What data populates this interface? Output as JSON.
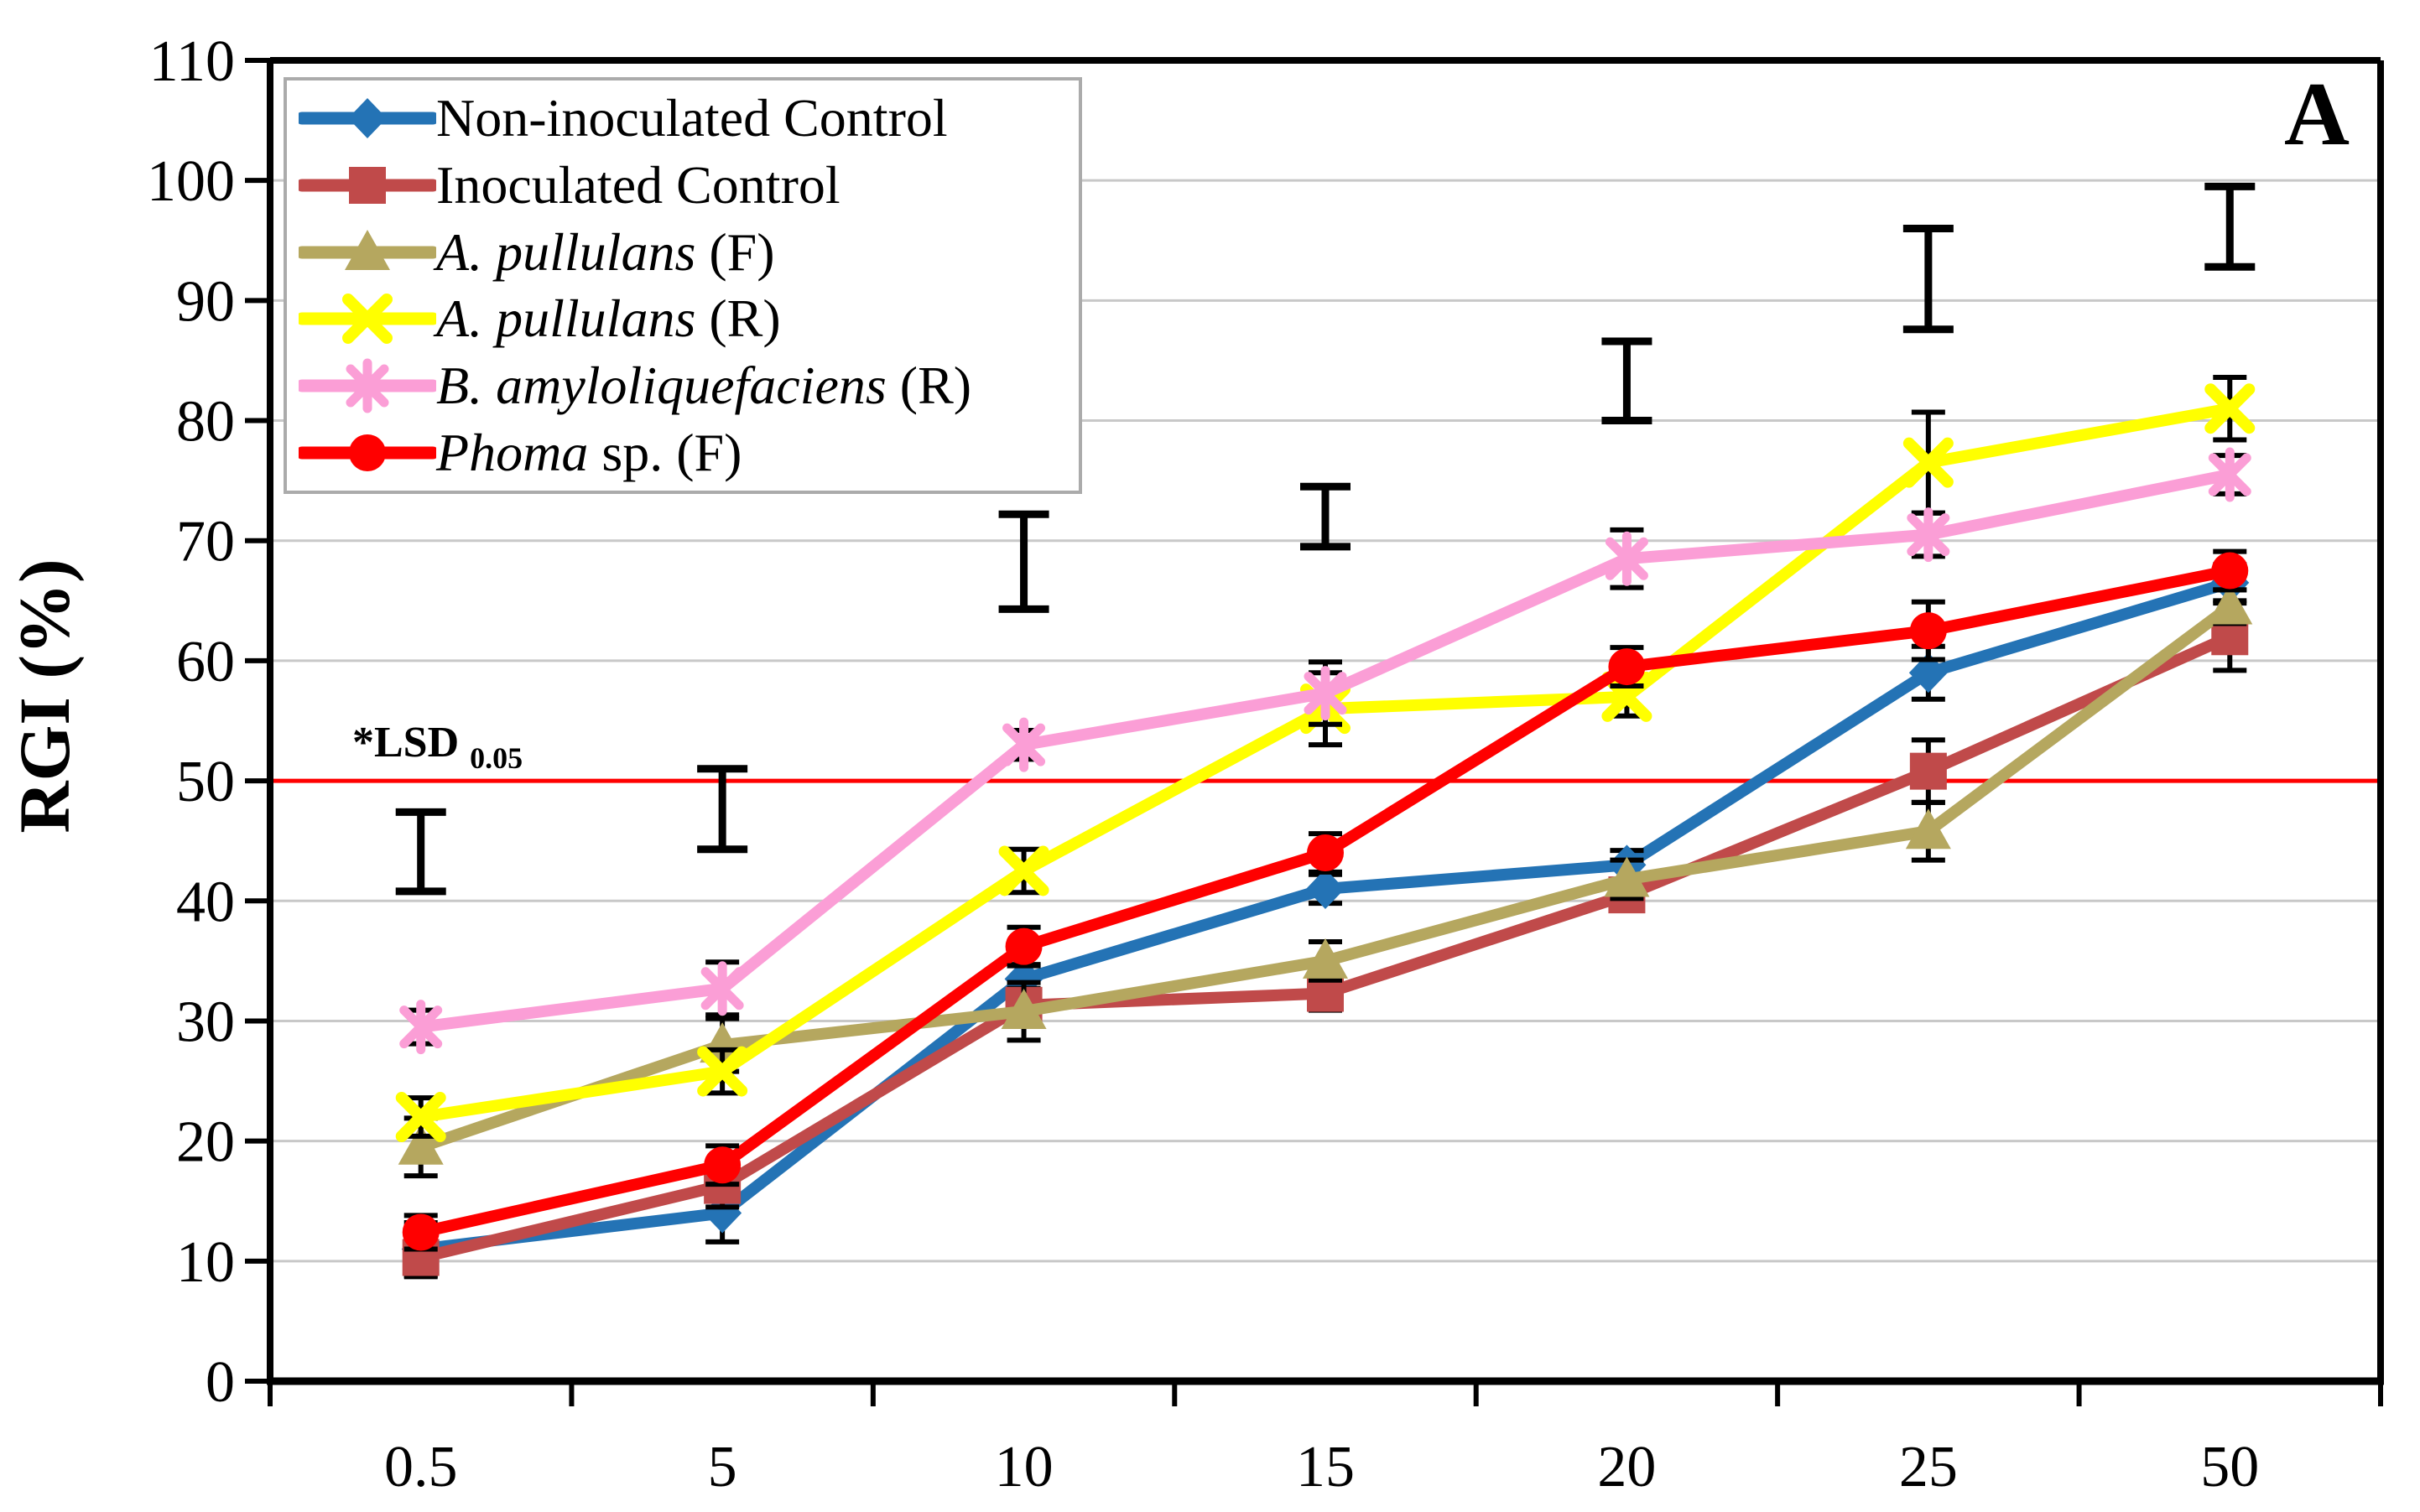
{
  "figure": {
    "panel_label": "A",
    "y_axis": {
      "title": "RGI (%)",
      "tick_labels": [
        "0",
        "10",
        "20",
        "30",
        "40",
        "50",
        "60",
        "70",
        "80",
        "90",
        "100",
        "110"
      ]
    },
    "x_axis": {
      "tick_labels": [
        "0.5",
        "5",
        "10",
        "15",
        "20",
        "25",
        "50"
      ]
    },
    "lsd": {
      "label_prefix": "*LSD",
      "label_sub": "0.05",
      "line_value": 50,
      "line_color": "#FF0000"
    }
  },
  "chart_data": {
    "type": "line",
    "title": "",
    "xlabel": "",
    "ylabel": "RGI (%)",
    "ylim": [
      0,
      110
    ],
    "grid": true,
    "legend_position": "top-left",
    "gridline_color": "#C8C8C8",
    "categories": [
      "0.5",
      "5",
      "10",
      "15",
      "20",
      "25",
      "50"
    ],
    "series": [
      {
        "name": "Non-inoculated Control",
        "legend_parts": [
          {
            "text": "Non-inoculated Control",
            "italic": false
          }
        ],
        "color": "#2473B5",
        "marker": "diamond",
        "values": [
          11,
          14,
          33.5,
          41,
          43,
          59,
          66.5
        ],
        "errors": [
          2.2,
          2.4,
          1.2,
          1.2,
          1.2,
          2.2,
          1.5
        ]
      },
      {
        "name": "Inoculated Control",
        "legend_parts": [
          {
            "text": "Inoculated Control",
            "italic": false
          }
        ],
        "color": "#C04A4A",
        "marker": "square",
        "values": [
          10.3,
          16.3,
          31.3,
          32.3,
          40.5,
          50.8,
          62
        ],
        "errors": [
          1.6,
          1.8,
          1.4,
          1.4,
          1.2,
          2.6,
          2.8
        ]
      },
      {
        "name": "A. pullulans (F)",
        "legend_parts": [
          {
            "text": "A. pullulans",
            "italic": true
          },
          {
            "text": " (F)",
            "italic": false
          }
        ],
        "color": "#B5A75F",
        "marker": "triangle",
        "values": [
          19.5,
          28,
          30.8,
          35,
          41.8,
          45.8,
          64.5
        ],
        "errors": [
          2.4,
          2.2,
          2.4,
          1.6,
          1.6,
          2.4,
          1.4
        ]
      },
      {
        "name": "A. pullulans (R)",
        "legend_parts": [
          {
            "text": "A. pullulans",
            "italic": true
          },
          {
            "text": " (R)",
            "italic": false
          }
        ],
        "color": "#FFFF00",
        "marker": "x",
        "values": [
          22,
          25.8,
          42.5,
          56,
          57,
          76.5,
          81
        ],
        "errors": [
          1.6,
          1.8,
          1.8,
          3,
          1.6,
          4.2,
          2.6
        ]
      },
      {
        "name": "B. amyloliquefaciens (R)",
        "legend_parts": [
          {
            "text": "B. amyloliquefaciens",
            "italic": true
          },
          {
            "text": " (R)",
            "italic": false
          }
        ],
        "color": "#FB9ED6",
        "marker": "asterisk",
        "values": [
          29.5,
          32.7,
          53,
          57.3,
          68.5,
          70.5,
          75.5
        ],
        "errors": [
          1.4,
          2.2,
          1.2,
          2.6,
          2.4,
          1.8,
          1.6
        ]
      },
      {
        "name": "Phoma sp. (F)",
        "legend_parts": [
          {
            "text": "Phoma",
            "italic": true
          },
          {
            "text": " sp. (F)",
            "italic": false
          }
        ],
        "color": "#FF0000",
        "marker": "circle",
        "values": [
          12.4,
          18,
          36.2,
          44,
          59.5,
          62.5,
          67.5
        ],
        "errors": [
          1.4,
          1.6,
          1.6,
          1.6,
          1.6,
          2.4,
          1.6
        ]
      }
    ],
    "lsd_interval_bars": [
      {
        "x": "0.5",
        "low": 40.8,
        "high": 47.4
      },
      {
        "x": "5",
        "low": 44.3,
        "high": 51
      },
      {
        "x": "10",
        "low": 64.3,
        "high": 72.2
      },
      {
        "x": "15",
        "low": 69.5,
        "high": 74.5
      },
      {
        "x": "20",
        "low": 80,
        "high": 86.6
      },
      {
        "x": "25",
        "low": 87.6,
        "high": 96
      },
      {
        "x": "50",
        "low": 92.8,
        "high": 99.5
      }
    ],
    "reference_line": {
      "value": 50,
      "color": "#FF0000",
      "label": "*LSD 0.05"
    }
  }
}
